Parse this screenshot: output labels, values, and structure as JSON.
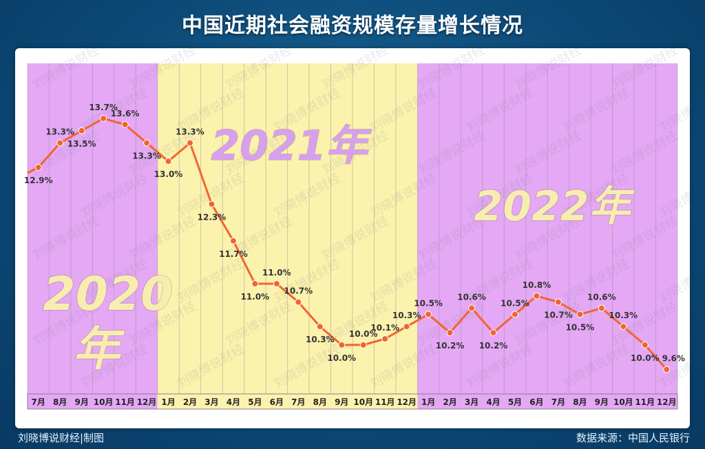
{
  "title": "中国近期社会融资规模存量增长情况",
  "credit": "刘晓博说财经|制图",
  "source": "数据来源：中国人民银行",
  "watermark": "刘晓博说财经",
  "colors": {
    "band_2020": "#e4a8f5",
    "band_2021": "#fbf2ae",
    "band_2022": "#e4a8f5",
    "line": "#f0652f",
    "point": "#f0652f",
    "year_label": "#f7edb0",
    "year_label_2021": "#d79ff0"
  },
  "chart_data": {
    "type": "line",
    "title": "中国近期社会融资规模存量增长情况",
    "x": [
      "7月",
      "8月",
      "9月",
      "10月",
      "11月",
      "12月",
      "1月",
      "2月",
      "3月",
      "4月",
      "5月",
      "6月",
      "7月",
      "8月",
      "9月",
      "10月",
      "11月",
      "12月",
      "1月",
      "2月",
      "3月",
      "4月",
      "5月",
      "6月",
      "7月",
      "8月",
      "9月",
      "10月",
      "11月",
      "12月"
    ],
    "series": [
      {
        "values": [
          12.9,
          13.3,
          13.5,
          13.7,
          13.6,
          13.3,
          13.0,
          13.3,
          12.3,
          11.7,
          11.0,
          11.0,
          10.7,
          10.3,
          10.0,
          10.0,
          10.1,
          10.3,
          10.5,
          10.2,
          10.6,
          10.2,
          10.5,
          10.8,
          10.7,
          10.5,
          10.6,
          10.3,
          10.0,
          9.6
        ]
      }
    ],
    "data_labels": [
      "12.9%",
      "13.3%",
      "13.5%",
      "13.7%",
      "13.6%",
      "13.3%",
      "13.0%",
      "13.3%",
      "12.3%",
      "11.7%",
      "11.0%",
      "11.0%",
      "10.7%",
      "10.3%",
      "10.0%",
      "10.0%",
      "10.1%",
      "10.3%",
      "10.5%",
      "10.2%",
      "10.6%",
      "10.2%",
      "10.5%",
      "10.8%",
      "10.7%",
      "10.5%",
      "10.6%",
      "10.3%",
      "10.0%",
      "9.6%"
    ],
    "ylim": [
      9.2,
      14.6
    ],
    "grid": "vertical",
    "year_bands": [
      {
        "label_main": "2020",
        "label_sub": "年",
        "start": 0,
        "end": 5
      },
      {
        "label_main": "2021年",
        "start": 6,
        "end": 17
      },
      {
        "label_main": "2022年",
        "start": 18,
        "end": 29
      }
    ]
  }
}
